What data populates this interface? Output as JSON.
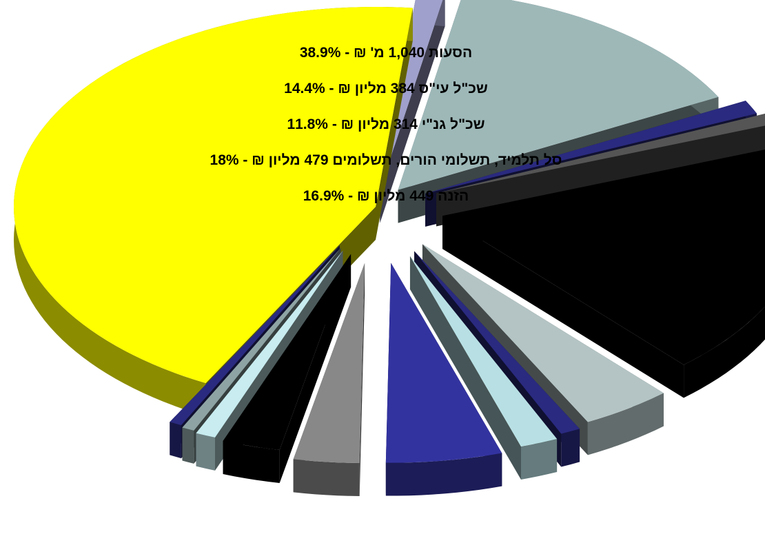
{
  "chart_data": {
    "type": "pie",
    "style": "3d-exploded",
    "annotations": [
      "הסעות 1,040 מ' ₪ - 38.9%",
      "שכ\"ל עי\"ס 384 מליון ₪ - 14.4%",
      "שכ\"ל גנ\"י 314 מליון ₪ - 11.8%",
      "סל תלמיד, תשלומי הורים, תשלומים 479 מליון ₪ - 18%",
      "הזנה  449 מליון ₪ - 16.9%"
    ],
    "slices": [
      {
        "value": 38.9,
        "color": "#ffff00"
      },
      {
        "value": 1.1,
        "color": "#a0a0cc"
      },
      {
        "value": 12.8,
        "color": "#9eb8b8"
      },
      {
        "value": 1.0,
        "color": "#2a2a80"
      },
      {
        "value": 0.8,
        "color": "#555555"
      },
      {
        "value": 16.9,
        "color": "#000000"
      },
      {
        "value": 3.6,
        "color": "#b4c4c4"
      },
      {
        "value": 0.8,
        "color": "#2a2a80"
      },
      {
        "value": 1.5,
        "color": "#b8e0e4"
      },
      {
        "value": 4.6,
        "color": "#3333a0"
      },
      {
        "value": 2.6,
        "color": "#888888"
      },
      {
        "value": 2.3,
        "color": "#000000"
      },
      {
        "value": 0.8,
        "color": "#c8ecf0"
      },
      {
        "value": 0.5,
        "color": "#8ea4a4"
      },
      {
        "value": 0.5,
        "color": "#2a2a80"
      }
    ]
  }
}
